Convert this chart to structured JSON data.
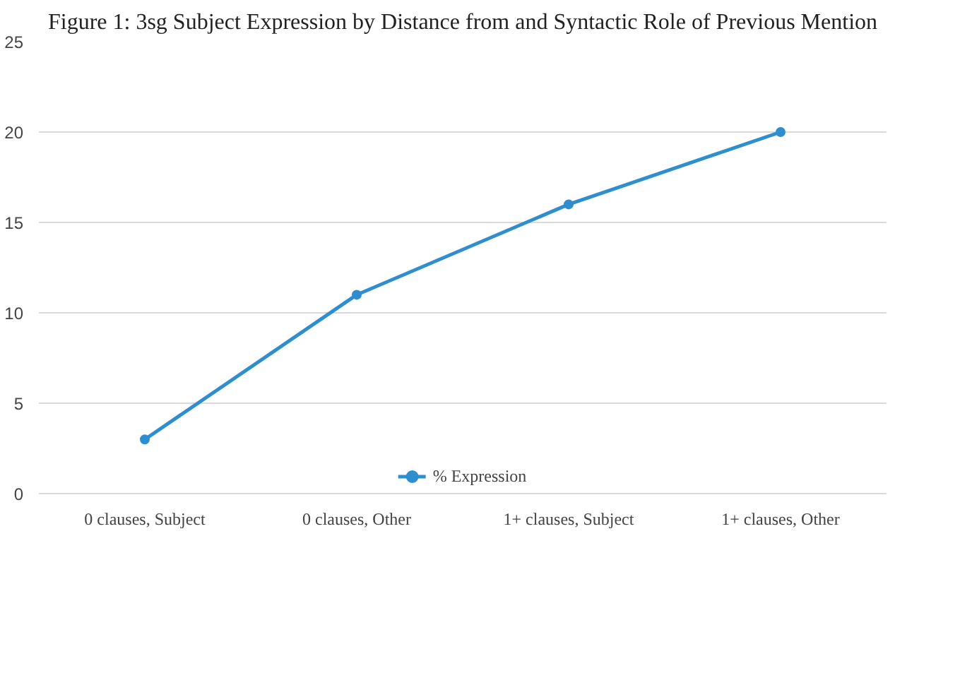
{
  "chart_data": {
    "type": "line",
    "title": "Figure 1: 3sg Subject Expression by Distance from and Syntactic Role of Previous Mention",
    "categories": [
      "0 clauses, Subject",
      "0 clauses, Other",
      "1+ clauses, Subject",
      "1+ clauses, Other"
    ],
    "series": [
      {
        "name": "% Expression",
        "color": "#2e8ecf",
        "values": [
          3,
          11,
          16,
          20
        ]
      }
    ],
    "ylim": [
      0,
      25
    ],
    "yticks": [
      0,
      5,
      10,
      15,
      20,
      25
    ],
    "grid": "y",
    "legend": "bottom",
    "marker": "circle",
    "line_style": "solid"
  }
}
